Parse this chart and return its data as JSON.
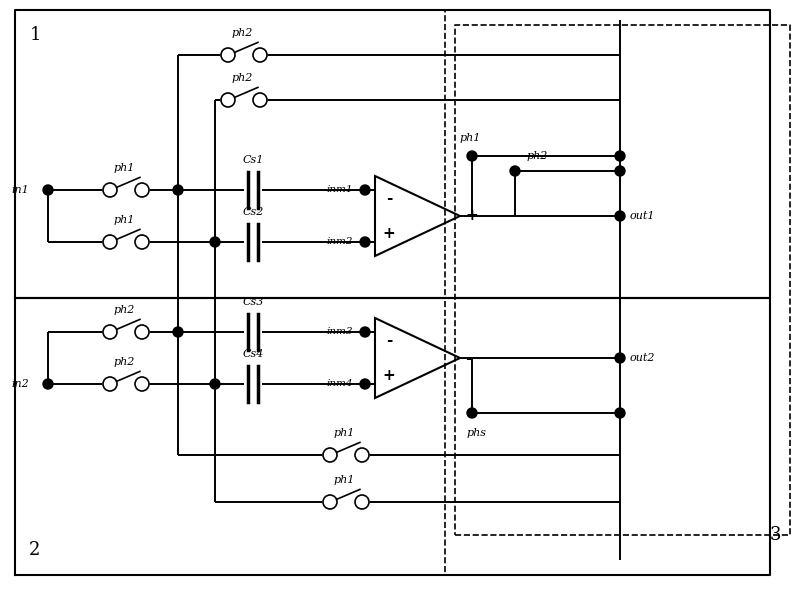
{
  "fig_width": 8.0,
  "fig_height": 5.9,
  "bg": "#ffffff",
  "box1_label": "1",
  "box2_label": "2",
  "box3_label": "3",
  "sw_labels": [
    "ph2",
    "ph2",
    "ph1",
    "ph1",
    "ph2",
    "ph2",
    "ph1",
    "ph1"
  ],
  "cap_labels": [
    "Cs1",
    "Cs2",
    "Cs3",
    "Cs4"
  ],
  "node_labels": {
    "in1": "in1",
    "in2": "in2",
    "inm1": "inm1",
    "inm2": "inm2",
    "inm3": "inm3",
    "inm4": "inm4",
    "ph1": "ph1",
    "ph2": "ph2",
    "phs": "phs",
    "out1": "out1",
    "out2": "out2"
  }
}
